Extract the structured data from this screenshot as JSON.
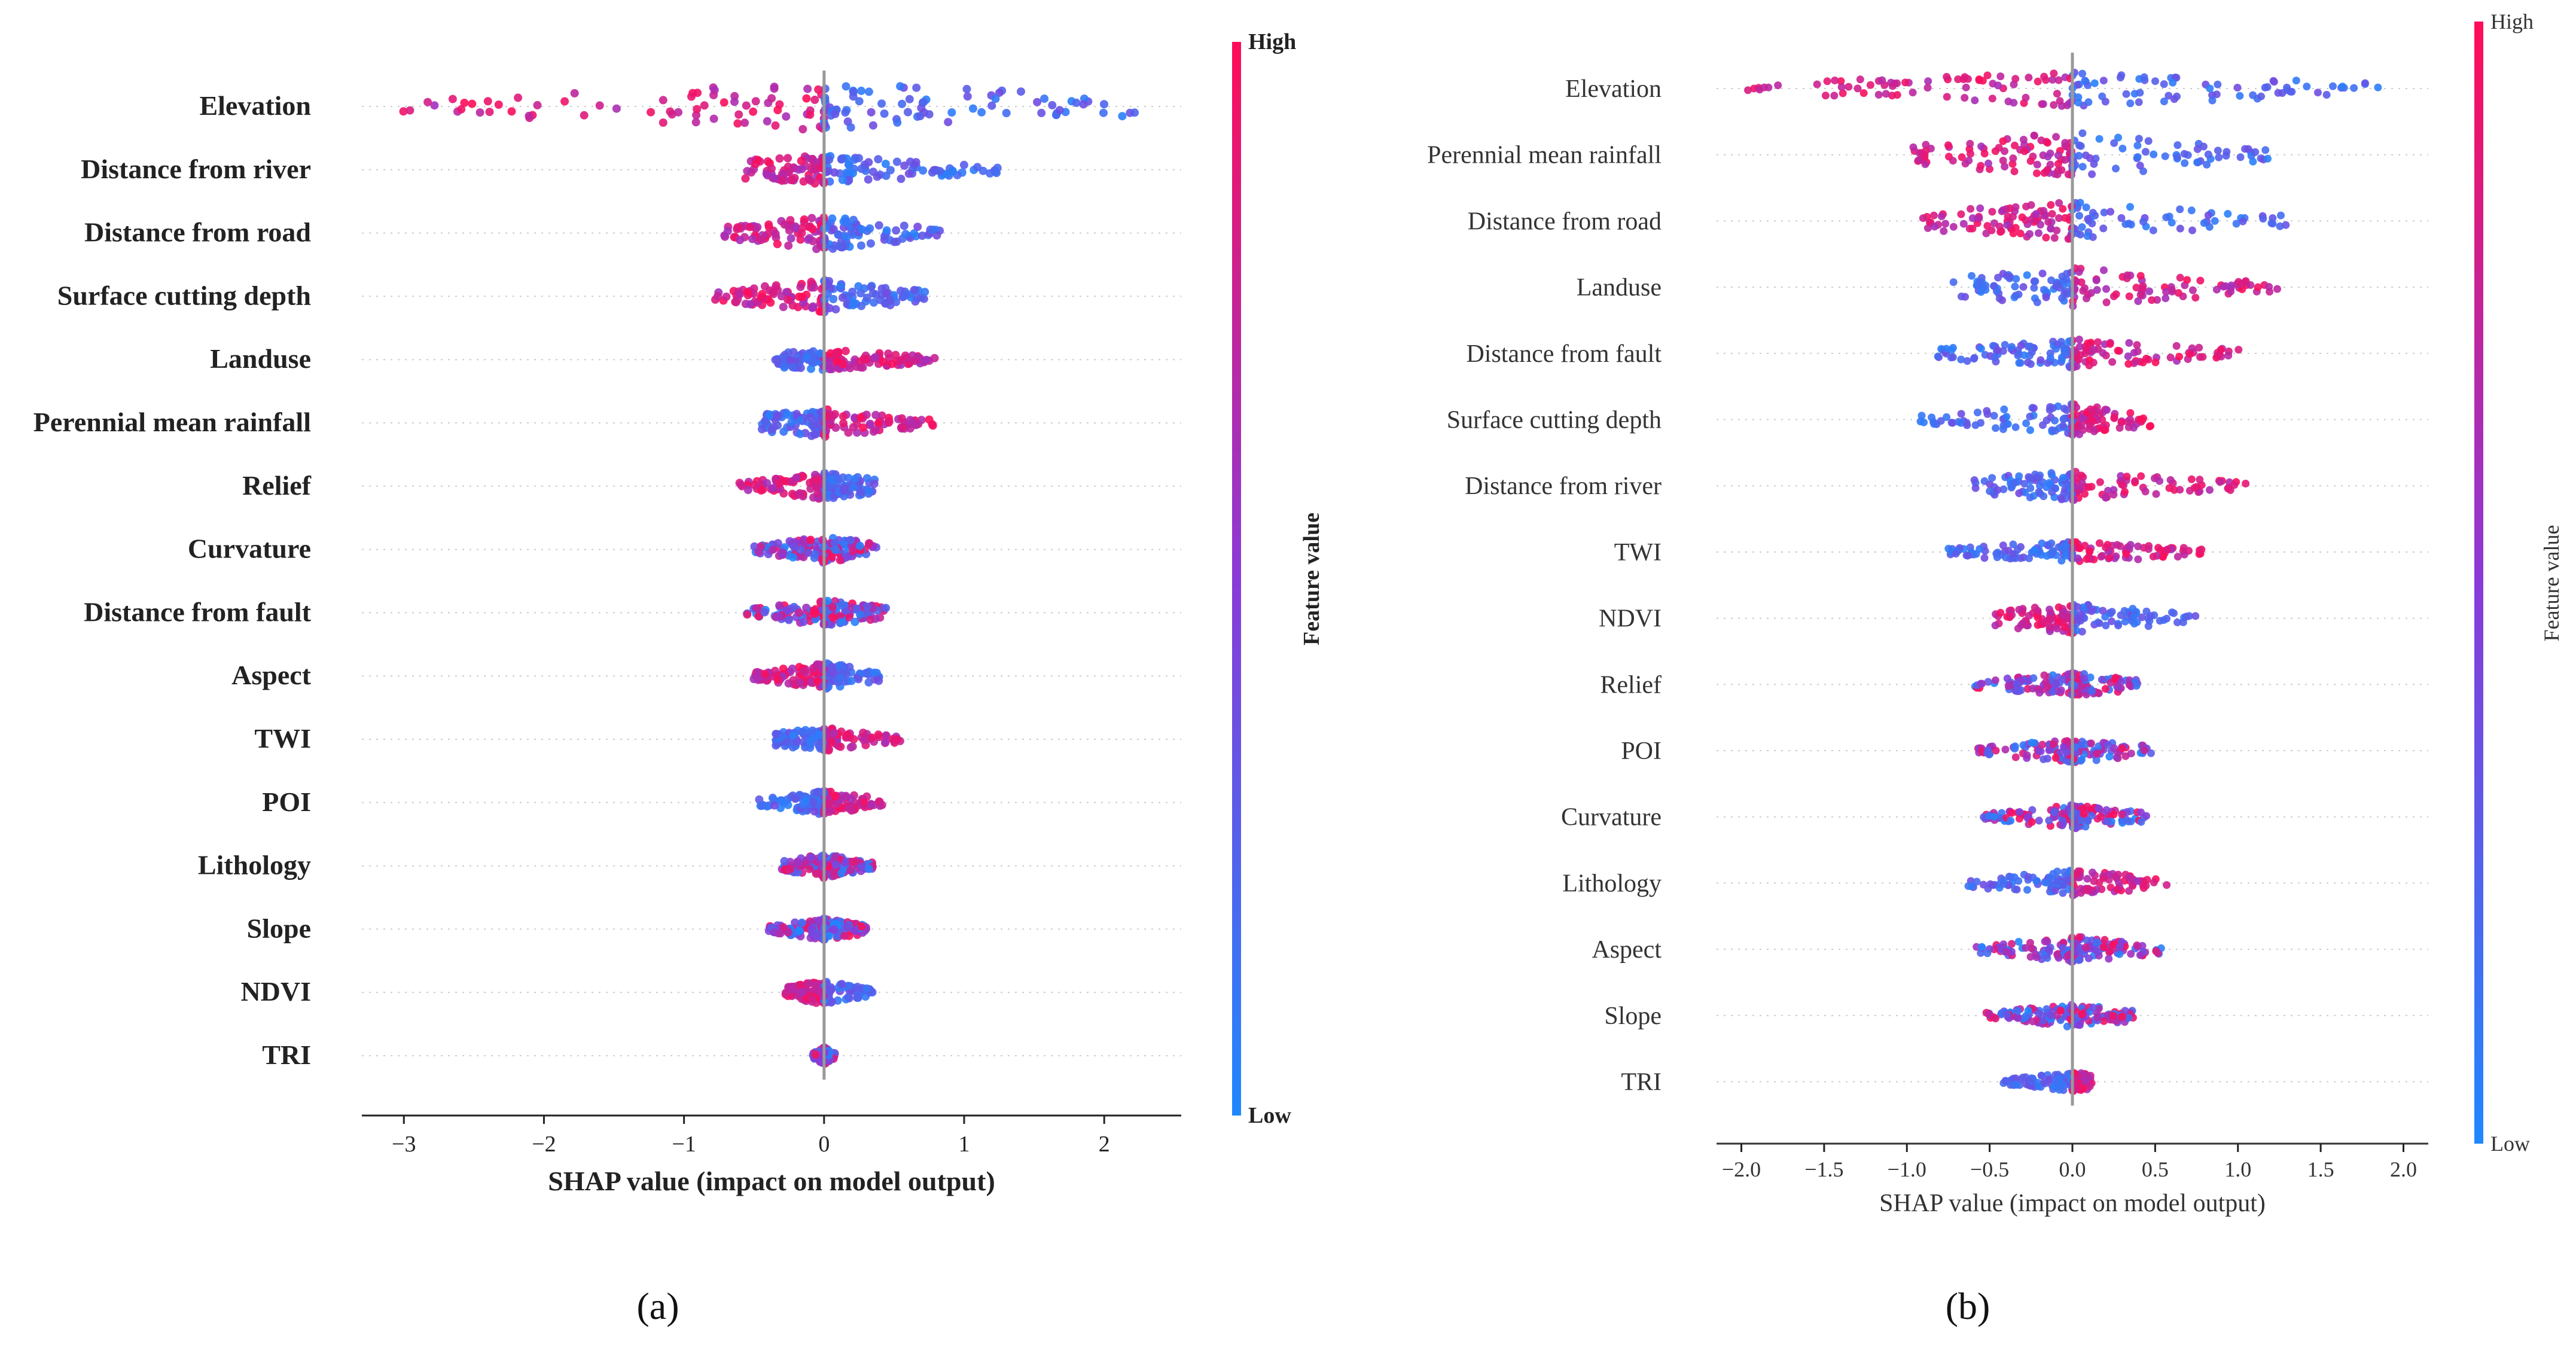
{
  "colors": {
    "low": "#1e88ff",
    "high": "#ff0d57",
    "axis": "#222222",
    "zero": "#999999"
  },
  "chart_data": [
    {
      "id": "a",
      "type": "scatter",
      "subtype": "shap-beeswarm",
      "caption": "(a)",
      "xlabel": "SHAP value (impact on model output)",
      "xlim": [
        -3.3,
        2.55
      ],
      "xticks": [
        -3,
        -2,
        -1,
        0,
        1,
        2
      ],
      "xtick_labels": [
        "−3",
        "−2",
        "−1",
        "0",
        "1",
        "2"
      ],
      "colorbar": {
        "title": "Feature value",
        "high": "High",
        "low": "Low"
      },
      "features": [
        {
          "name": "Elevation",
          "min": -3.05,
          "max": 2.25,
          "low_side": "right",
          "spread": 1.0
        },
        {
          "name": "Distance from river",
          "min": -0.6,
          "max": 1.3,
          "low_side": "right",
          "spread": 0.6
        },
        {
          "name": "Distance from road",
          "min": -0.75,
          "max": 0.85,
          "low_side": "right",
          "spread": 0.7
        },
        {
          "name": "Surface cutting depth",
          "min": -0.78,
          "max": 0.72,
          "low_side": "right",
          "spread": 0.7
        },
        {
          "name": "Landuse",
          "min": -0.35,
          "max": 0.8,
          "low_side": "left",
          "spread": 0.45
        },
        {
          "name": "Perennial mean rainfall",
          "min": -0.45,
          "max": 0.78,
          "low_side": "left",
          "spread": 0.6
        },
        {
          "name": "Relief",
          "min": -0.62,
          "max": 0.36,
          "low_side": "right",
          "spread": 0.55
        },
        {
          "name": "Curvature",
          "min": -0.5,
          "max": 0.38,
          "low_side": "mixed",
          "spread": 0.55
        },
        {
          "name": "Distance from fault",
          "min": -0.55,
          "max": 0.45,
          "low_side": "mixed",
          "spread": 0.55
        },
        {
          "name": "Aspect",
          "min": -0.52,
          "max": 0.4,
          "low_side": "right",
          "spread": 0.55
        },
        {
          "name": "TWI",
          "min": -0.35,
          "max": 0.55,
          "low_side": "left",
          "spread": 0.5
        },
        {
          "name": "POI",
          "min": -0.48,
          "max": 0.42,
          "low_side": "left",
          "spread": 0.5
        },
        {
          "name": "Lithology",
          "min": -0.3,
          "max": 0.35,
          "low_side": "mixed",
          "spread": 0.5
        },
        {
          "name": "Slope",
          "min": -0.4,
          "max": 0.3,
          "low_side": "mixed",
          "spread": 0.45
        },
        {
          "name": "NDVI",
          "min": -0.28,
          "max": 0.35,
          "low_side": "right",
          "spread": 0.5
        },
        {
          "name": "TRI",
          "min": -0.08,
          "max": 0.08,
          "low_side": "mixed",
          "spread": 0.35
        }
      ]
    },
    {
      "id": "b",
      "type": "scatter",
      "subtype": "shap-beeswarm",
      "caption": "(b)",
      "xlabel": "SHAP value (impact on model output)",
      "xlim": [
        -2.15,
        2.15
      ],
      "xticks": [
        -2.0,
        -1.5,
        -1.0,
        -0.5,
        0.0,
        0.5,
        1.0,
        1.5,
        2.0
      ],
      "xtick_labels": [
        "−2.0",
        "−1.5",
        "−1.0",
        "−0.5",
        "0.0",
        "0.5",
        "1.0",
        "1.5",
        "2.0"
      ],
      "colorbar": {
        "title": "Feature value",
        "high": "High",
        "low": "Low"
      },
      "features": [
        {
          "name": "Elevation",
          "min": -1.98,
          "max": 1.98,
          "low_side": "right",
          "spread": 0.75
        },
        {
          "name": "Perennial mean rainfall",
          "min": -1.02,
          "max": 1.2,
          "low_side": "right",
          "spread": 0.95
        },
        {
          "name": "Distance from road",
          "min": -0.92,
          "max": 1.35,
          "low_side": "right",
          "spread": 0.8
        },
        {
          "name": "Landuse",
          "min": -0.72,
          "max": 1.25,
          "low_side": "left",
          "spread": 0.8
        },
        {
          "name": "Distance from fault",
          "min": -0.82,
          "max": 1.02,
          "low_side": "left",
          "spread": 0.6
        },
        {
          "name": "Surface cutting depth",
          "min": -0.95,
          "max": 0.48,
          "low_side": "left",
          "spread": 0.65
        },
        {
          "name": "Distance from river",
          "min": -0.6,
          "max": 1.05,
          "low_side": "left",
          "spread": 0.6
        },
        {
          "name": "TWI",
          "min": -0.75,
          "max": 0.8,
          "low_side": "left",
          "spread": 0.5
        },
        {
          "name": "NDVI",
          "min": -0.5,
          "max": 0.75,
          "low_side": "right",
          "spread": 0.65
        },
        {
          "name": "Relief",
          "min": -0.6,
          "max": 0.4,
          "low_side": "mixed",
          "spread": 0.5
        },
        {
          "name": "POI",
          "min": -0.58,
          "max": 0.5,
          "low_side": "mixed",
          "spread": 0.5
        },
        {
          "name": "Curvature",
          "min": -0.55,
          "max": 0.45,
          "low_side": "mixed",
          "spread": 0.5
        },
        {
          "name": "Lithology",
          "min": -0.68,
          "max": 0.58,
          "low_side": "left",
          "spread": 0.55
        },
        {
          "name": "Aspect",
          "min": -0.6,
          "max": 0.55,
          "low_side": "mixed",
          "spread": 0.55
        },
        {
          "name": "Slope",
          "min": -0.52,
          "max": 0.38,
          "low_side": "mixed",
          "spread": 0.5
        },
        {
          "name": "TRI",
          "min": -0.42,
          "max": 0.12,
          "low_side": "left",
          "spread": 0.4
        }
      ]
    }
  ]
}
